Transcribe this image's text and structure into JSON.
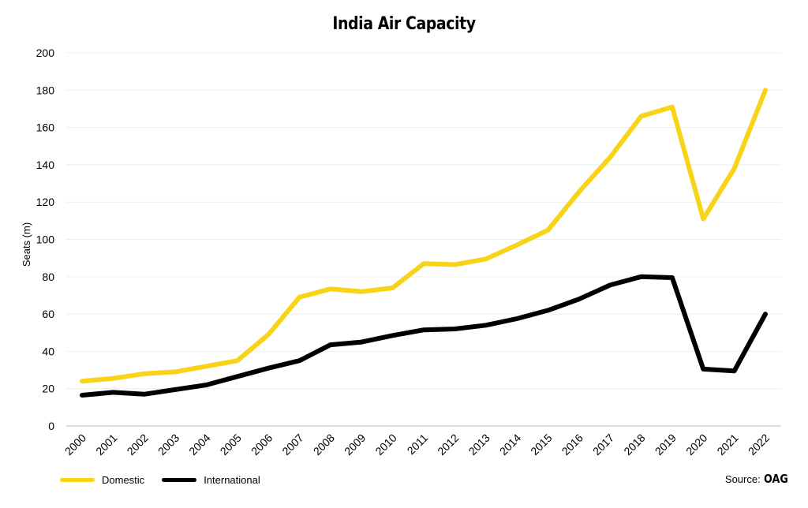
{
  "chart_data": {
    "type": "line",
    "title": "India Air Capacity",
    "ylabel": "Seats (m)",
    "xlabel": "",
    "ylim": [
      0,
      200
    ],
    "yticks": [
      0,
      20,
      40,
      60,
      80,
      100,
      120,
      140,
      160,
      180,
      200
    ],
    "categories": [
      "2000",
      "2001",
      "2002",
      "2003",
      "2004",
      "2005",
      "2006",
      "2007",
      "2008",
      "2009",
      "2010",
      "2011",
      "2012",
      "2013",
      "2014",
      "2015",
      "2016",
      "2017",
      "2018",
      "2019",
      "2020",
      "2021",
      "2022"
    ],
    "series": [
      {
        "name": "Domestic",
        "color": "#f7d417",
        "values": [
          24,
          25.5,
          28,
          29,
          32,
          35,
          49,
          69,
          73.5,
          72,
          74,
          87,
          86.5,
          89.5,
          97,
          105,
          125.5,
          144,
          166,
          171,
          111,
          138,
          180
        ]
      },
      {
        "name": "International",
        "color": "#000000",
        "values": [
          16.5,
          18,
          17,
          19.5,
          22,
          26.5,
          31,
          35,
          43.5,
          45,
          48.5,
          51.5,
          52,
          54,
          57.5,
          62,
          68,
          75.5,
          80,
          79.5,
          30.5,
          29.5,
          60
        ]
      }
    ],
    "grid": "horizontal",
    "legend_position": "bottom-left"
  },
  "footer": {
    "source_label": "Source:",
    "source_brand": "OAG"
  }
}
